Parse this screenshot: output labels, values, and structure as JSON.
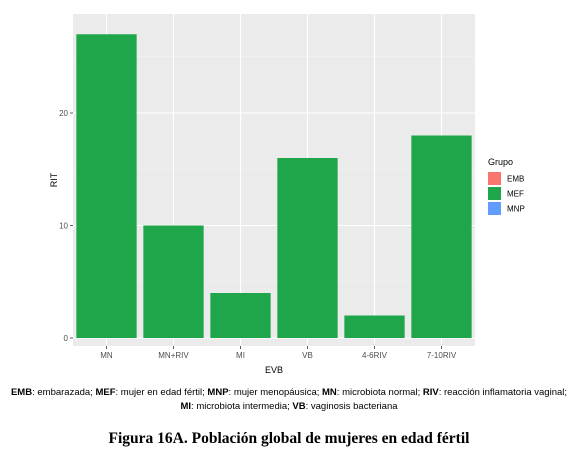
{
  "chart_data": {
    "type": "bar",
    "categories": [
      "MN",
      "MN+RIV",
      "MI",
      "VB",
      "4-6RIV",
      "7-10RIV"
    ],
    "series": [
      {
        "name": "MEF",
        "values": [
          27,
          10,
          4,
          16,
          2,
          18
        ],
        "color": "#1fa64a"
      }
    ],
    "xlabel": "EVB",
    "ylabel": "RIT",
    "ylim": [
      0,
      29
    ],
    "yticks": [
      0,
      10,
      20
    ],
    "grid": true,
    "legend": {
      "title": "Grupo",
      "position": "right",
      "entries": [
        {
          "label": "EMB",
          "color": "#f8766d"
        },
        {
          "label": "MEF",
          "color": "#1fa64a"
        },
        {
          "label": "MNP",
          "color": "#619cff"
        }
      ]
    },
    "panel_color": "#ebebeb"
  },
  "caption": {
    "line1": [
      {
        "b": "EMB",
        "t": ": embarazada; "
      },
      {
        "b": "MEF",
        "t": ": mujer en edad fértil; "
      },
      {
        "b": "MNP",
        "t": ": mujer menopáusica; "
      },
      {
        "b": "MN",
        "t": ": microbiota normal; "
      },
      {
        "b": "RIV",
        "t": ": reacción inflamatoria vaginal;"
      }
    ],
    "line2": [
      {
        "b": "MI",
        "t": ": microbiota intermedia; "
      },
      {
        "b": "VB",
        "t": ": vaginosis bacteriana"
      }
    ]
  },
  "figure_title": "Figura 16A. Población global de mujeres en edad fértil"
}
